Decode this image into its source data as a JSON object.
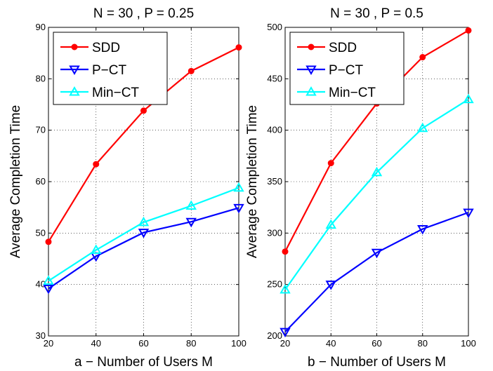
{
  "chart_data": [
    {
      "type": "line",
      "title": "N = 30 , P = 0.25",
      "xlabel": "a − Number of Users M",
      "ylabel": "Average Completion Time",
      "x": [
        20,
        40,
        60,
        80,
        100
      ],
      "xlim": [
        20,
        100
      ],
      "ylim": [
        30,
        90
      ],
      "xticks": [
        "20",
        "40",
        "60",
        "80",
        "100"
      ],
      "yticks": [
        "30",
        "40",
        "50",
        "60",
        "70",
        "80",
        "90"
      ],
      "grid": "dotted",
      "legend_position": "top-left",
      "series": [
        {
          "name": "SDD",
          "color": "#ff0000",
          "marker": "circle",
          "values": [
            48.3,
            63.4,
            73.8,
            81.5,
            86.1
          ]
        },
        {
          "name": "P−CT",
          "color": "#0000ff",
          "marker": "triangle-down",
          "values": [
            39.2,
            45.5,
            50.1,
            52.2,
            54.9
          ]
        },
        {
          "name": "Min−CT",
          "color": "#00ffff",
          "marker": "triangle-up",
          "values": [
            40.7,
            46.7,
            52.1,
            55.3,
            58.8
          ]
        }
      ]
    },
    {
      "type": "line",
      "title": "N = 30 , P = 0.5",
      "xlabel": "b − Number of Users M",
      "ylabel": "Average Completion Time",
      "x": [
        20,
        40,
        60,
        80,
        100
      ],
      "xlim": [
        20,
        100
      ],
      "ylim": [
        200,
        500
      ],
      "xticks": [
        "20",
        "40",
        "60",
        "80",
        "100"
      ],
      "yticks": [
        "200",
        "250",
        "300",
        "350",
        "400",
        "450",
        "500"
      ],
      "grid": "dotted",
      "legend_position": "top-left",
      "series": [
        {
          "name": "SDD",
          "color": "#ff0000",
          "marker": "circle",
          "values": [
            282,
            368,
            426,
            471,
            497
          ]
        },
        {
          "name": "P−CT",
          "color": "#0000ff",
          "marker": "triangle-down",
          "values": [
            204,
            250,
            281,
            304,
            320
          ]
        },
        {
          "name": "Min−CT",
          "color": "#00ffff",
          "marker": "triangle-up",
          "values": [
            245,
            308,
            359,
            402,
            430
          ]
        }
      ]
    }
  ]
}
